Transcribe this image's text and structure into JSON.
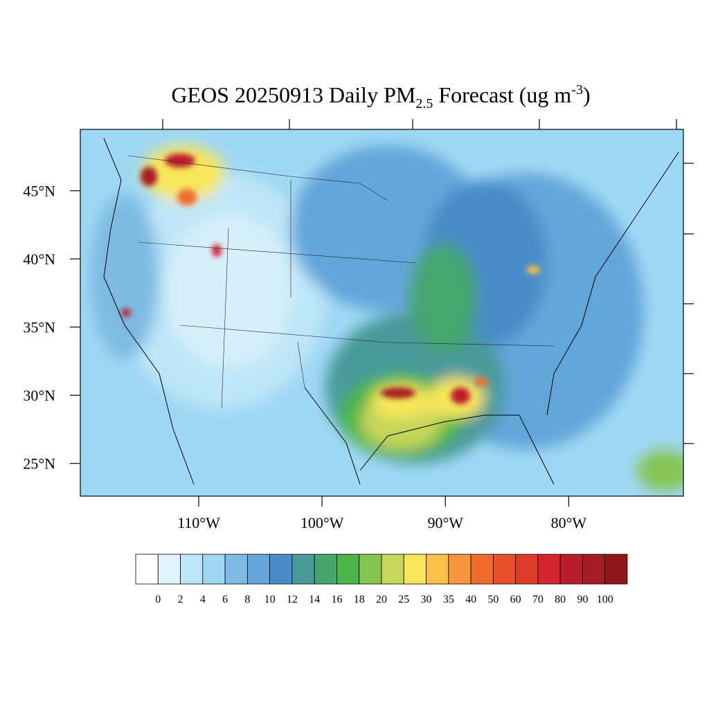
{
  "chart_data": {
    "type": "map",
    "title": {
      "main": "GEOS 20250913 Daily PM",
      "sub": "2.5",
      "rest": " Forecast (ug m",
      "sup": "-3",
      "end": ")"
    },
    "xlim": [
      -119.6,
      -70.7
    ],
    "ylim": [
      22.6,
      49.5
    ],
    "xticks": [
      {
        "value": -110,
        "label": "110°W"
      },
      {
        "value": -100,
        "label": "100°W"
      },
      {
        "value": -90,
        "label": "90°W"
      },
      {
        "value": -80,
        "label": "80°W"
      }
    ],
    "yticks": [
      {
        "value": 45,
        "label": "45°N"
      },
      {
        "value": 40,
        "label": "40°N"
      },
      {
        "value": 35,
        "label": "35°N"
      },
      {
        "value": 30,
        "label": "30°N"
      },
      {
        "value": 25,
        "label": "25°N"
      }
    ],
    "colorbar": {
      "levels": [
        0,
        2,
        4,
        6,
        8,
        10,
        12,
        14,
        16,
        18,
        20,
        25,
        30,
        35,
        40,
        50,
        60,
        70,
        80,
        90,
        100
      ],
      "colors": [
        "#ffffff",
        "#e0f3fb",
        "#bfe6f7",
        "#9fd8f4",
        "#7ebbe3",
        "#64a6d9",
        "#4a8bc8",
        "#4a9a9a",
        "#46a56e",
        "#4bb54a",
        "#86c452",
        "#c5d65a",
        "#f8e65a",
        "#f8bf4a",
        "#f6963d",
        "#ef6c2d",
        "#e84f2a",
        "#dc3a2a",
        "#d42430",
        "#bb1e2a",
        "#a51c22",
        "#8f1619"
      ]
    }
  }
}
